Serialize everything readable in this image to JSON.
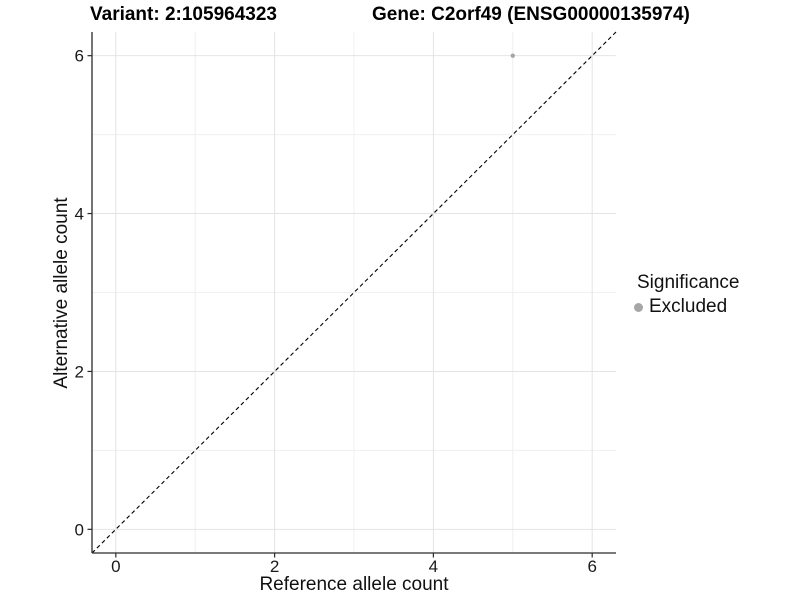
{
  "chart_data": {
    "type": "scatter",
    "title_variant": "Variant: 2:105964323",
    "title_gene": "Gene: C2orf49 (ENSG00000135974)",
    "xlabel": "Reference allele count",
    "ylabel": "Alternative allele count",
    "xlim": [
      -0.3,
      6.3
    ],
    "ylim": [
      -0.3,
      6.3
    ],
    "x_ticks": [
      0,
      2,
      4,
      6
    ],
    "y_ticks": [
      0,
      2,
      4,
      6
    ],
    "x_minor_ticks": [
      1,
      3,
      5
    ],
    "y_minor_ticks": [
      1,
      3,
      5
    ],
    "grid": true,
    "reference_line": {
      "type": "identity",
      "slope": 1,
      "intercept": 0,
      "style": "dashed",
      "color": "#000000"
    },
    "series": [
      {
        "name": "Excluded",
        "color": "#a6a6a6",
        "points": [
          {
            "x": 5,
            "y": 6
          }
        ]
      }
    ],
    "legend": {
      "title": "Significance",
      "position": "right",
      "entries": [
        {
          "label": "Excluded",
          "color": "#a6a6a6"
        }
      ]
    }
  }
}
